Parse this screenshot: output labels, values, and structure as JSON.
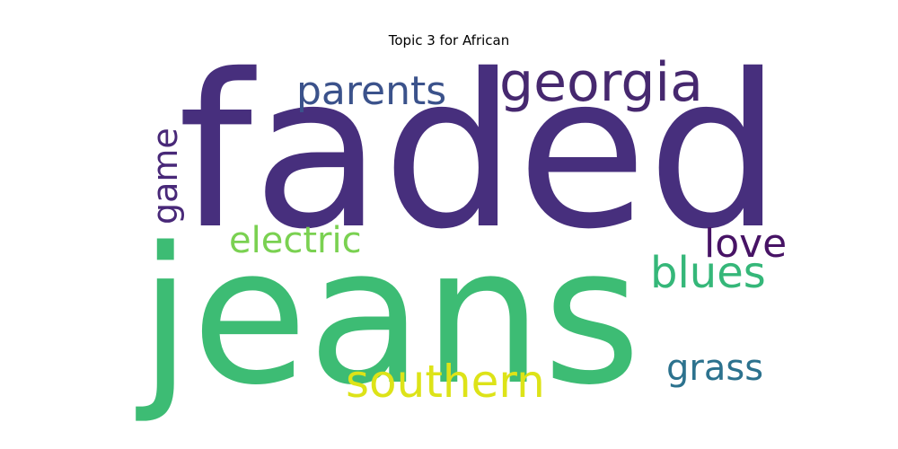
{
  "title": "Topic 3 for African",
  "words": [
    {
      "id": "faded",
      "text": "faded",
      "color": "#472f7d"
    },
    {
      "id": "jeans",
      "text": "jeans",
      "color": "#3dbc74"
    },
    {
      "id": "georgia",
      "text": "georgia",
      "color": "#46286f"
    },
    {
      "id": "parents",
      "text": "parents",
      "color": "#3b528b"
    },
    {
      "id": "game",
      "text": "game",
      "color": "#482878"
    },
    {
      "id": "electric",
      "text": "electric",
      "color": "#7ad151"
    },
    {
      "id": "love",
      "text": "love",
      "color": "#471365"
    },
    {
      "id": "blues",
      "text": "blues",
      "color": "#35b779"
    },
    {
      "id": "southern",
      "text": "southern",
      "color": "#dde318"
    },
    {
      "id": "grass",
      "text": "grass",
      "color": "#2c728e"
    }
  ]
}
